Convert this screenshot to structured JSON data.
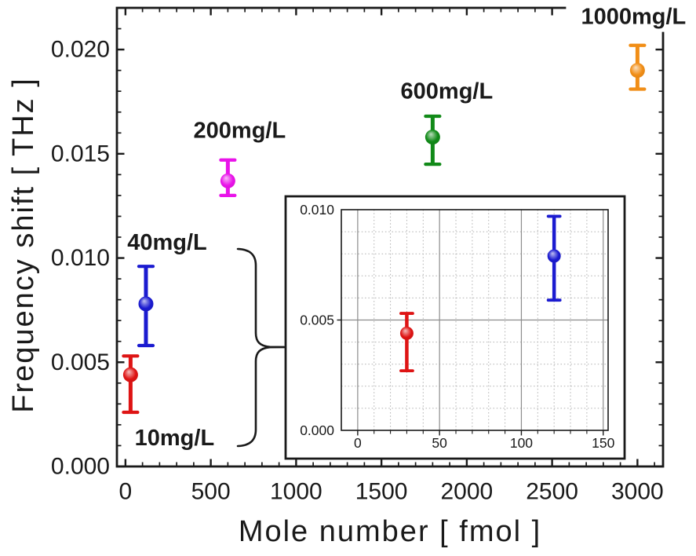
{
  "figure": {
    "background": "#ffffff",
    "frame_color": "#1a1a1a",
    "grid_minor_color": "#b0b0b0",
    "grid_major_color": "#8c8c8c"
  },
  "chart_data": [
    {
      "id": "main",
      "type": "scatter",
      "title": "",
      "xlabel": "Mole number [ fmol ]",
      "ylabel": "Frequency shift [ THz ]",
      "xlim": [
        -50,
        3150
      ],
      "ylim": [
        0,
        0.022
      ],
      "x_major_ticks": [
        0,
        500,
        1000,
        1500,
        2000,
        2500,
        3000
      ],
      "x_tick_labels": [
        "0",
        "500",
        "1000",
        "1500",
        "2000",
        "2500",
        "3000"
      ],
      "x_minor_step": 100,
      "y_major_ticks": [
        0,
        0.005,
        0.01,
        0.015,
        0.02
      ],
      "y_tick_labels": [
        "0.000",
        "0.005",
        "0.010",
        "0.015",
        "0.020"
      ],
      "y_minor_step": 0.001,
      "grid": false,
      "legend_position": "none",
      "series": [
        {
          "name": "10mg/L",
          "color": "#DE1414",
          "x": 30,
          "y": 0.0044,
          "y_low": 0.0026,
          "y_high": 0.0053
        },
        {
          "name": "40mg/L",
          "color": "#1B1BD0",
          "x": 120,
          "y": 0.0078,
          "y_low": 0.0058,
          "y_high": 0.0096
        },
        {
          "name": "200mg/L",
          "color": "#E913E9",
          "x": 600,
          "y": 0.0137,
          "y_low": 0.013,
          "y_high": 0.0147
        },
        {
          "name": "600mg/L",
          "color": "#118A18",
          "x": 1800,
          "y": 0.0158,
          "y_low": 0.0145,
          "y_high": 0.0168
        },
        {
          "name": "1000mg/L",
          "color": "#F18E17",
          "x": 3000,
          "y": 0.019,
          "y_low": 0.0181,
          "y_high": 0.0202
        }
      ]
    },
    {
      "id": "inset",
      "type": "scatter",
      "title": "",
      "xlabel": "",
      "ylabel": "",
      "xlim": [
        -10,
        153
      ],
      "ylim": [
        0,
        0.01
      ],
      "x_major_ticks": [
        0,
        50,
        100,
        150
      ],
      "x_tick_labels": [
        "0",
        "50",
        "100",
        "150"
      ],
      "x_minor_step": 10,
      "y_major_ticks": [
        0,
        0.005,
        0.01
      ],
      "y_tick_labels": [
        "0.000",
        "0.005",
        "0.010"
      ],
      "y_minor_step": 0.001,
      "grid": true,
      "legend_position": "none",
      "series": [
        {
          "name": "10mg/L",
          "color": "#DE1414",
          "x": 30,
          "y": 0.0044,
          "y_low": 0.0027,
          "y_high": 0.0053
        },
        {
          "name": "40mg/L",
          "color": "#1B1BD0",
          "x": 120,
          "y": 0.0079,
          "y_low": 0.0059,
          "y_high": 0.0097
        }
      ]
    }
  ]
}
